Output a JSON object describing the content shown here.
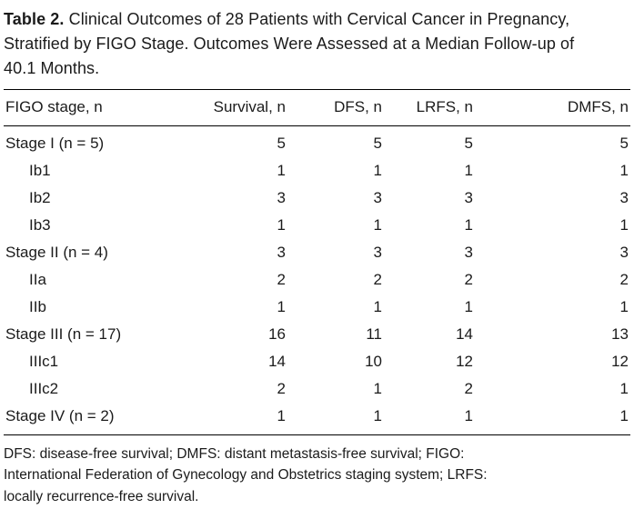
{
  "title": {
    "label": "Table 2.",
    "text": "Clinical Outcomes of 28 Patients with Cervical Cancer in Pregnancy, Stratified by FIGO Stage. Outcomes Were Assessed at a Median Follow-up of 40.1 Months."
  },
  "table": {
    "columns": [
      "FIGO stage, n",
      "Survival, n",
      "DFS, n",
      "LRFS, n",
      "DMFS, n"
    ],
    "rows": [
      {
        "stage": "Stage I (n = 5)",
        "indent": false,
        "values": [
          "5",
          "5",
          "5",
          "5"
        ]
      },
      {
        "stage": "Ib1",
        "indent": true,
        "values": [
          "1",
          "1",
          "1",
          "1"
        ]
      },
      {
        "stage": "Ib2",
        "indent": true,
        "values": [
          "3",
          "3",
          "3",
          "3"
        ]
      },
      {
        "stage": "Ib3",
        "indent": true,
        "values": [
          "1",
          "1",
          "1",
          "1"
        ]
      },
      {
        "stage": "Stage II (n = 4)",
        "indent": false,
        "values": [
          "3",
          "3",
          "3",
          "3"
        ]
      },
      {
        "stage": "IIa",
        "indent": true,
        "values": [
          "2",
          "2",
          "2",
          "2"
        ]
      },
      {
        "stage": "IIb",
        "indent": true,
        "values": [
          "1",
          "1",
          "1",
          "1"
        ]
      },
      {
        "stage": "Stage III (n = 17)",
        "indent": false,
        "values": [
          "16",
          "11",
          "14",
          "13"
        ]
      },
      {
        "stage": "IIIc1",
        "indent": true,
        "values": [
          "14",
          "10",
          "12",
          "12"
        ]
      },
      {
        "stage": "IIIc2",
        "indent": true,
        "values": [
          "2",
          "1",
          "2",
          "1"
        ]
      },
      {
        "stage": "Stage IV (n = 2)",
        "indent": false,
        "values": [
          "1",
          "1",
          "1",
          "1"
        ]
      }
    ]
  },
  "footnote": "DFS: disease-free survival; DMFS: distant metastasis-free survival; FIGO: International Federation of Gynecology and Obstetrics staging system; LRFS: locally recurrence-free survival."
}
